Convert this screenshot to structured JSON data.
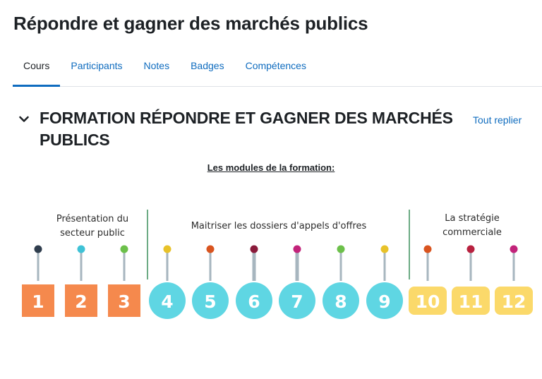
{
  "page": {
    "title": "Répondre et gagner des marchés publics"
  },
  "tabs": [
    {
      "label": "Cours",
      "active": true
    },
    {
      "label": "Participants"
    },
    {
      "label": "Notes"
    },
    {
      "label": "Badges"
    },
    {
      "label": "Compétences"
    }
  ],
  "section": {
    "title": "FORMATION RÉPONDRE ET GAGNER DES MARCHÉS PUBLICS",
    "collapse_all": "Tout replier",
    "toggle_icon": "chevron-down-icon"
  },
  "modules_heading": "Les modules de la formation:",
  "timeline": {
    "groups": [
      {
        "lines": [
          "Présentation du",
          "secteur public"
        ]
      },
      {
        "lines": [
          "Maitriser les dossiers d'appels d'offres"
        ]
      },
      {
        "lines": [
          "La stratégie",
          "commerciale"
        ]
      }
    ],
    "modules": [
      {
        "number": "1",
        "shape": "square",
        "color": "#f5894d",
        "dot": "#2f3d4d"
      },
      {
        "number": "2",
        "shape": "square",
        "color": "#f5894d",
        "dot": "#3fc2d6"
      },
      {
        "number": "3",
        "shape": "square",
        "color": "#f5894d",
        "dot": "#6cc04a"
      },
      {
        "number": "4",
        "shape": "circle",
        "color": "#5fd6e3",
        "dot": "#e8c229"
      },
      {
        "number": "5",
        "shape": "circle",
        "color": "#5fd6e3",
        "dot": "#d9541f"
      },
      {
        "number": "6",
        "shape": "circle",
        "color": "#5fd6e3",
        "dot": "#8a1b3b"
      },
      {
        "number": "7",
        "shape": "circle",
        "color": "#5fd6e3",
        "dot": "#c2237a"
      },
      {
        "number": "8",
        "shape": "circle",
        "color": "#5fd6e3",
        "dot": "#6cc04a"
      },
      {
        "number": "9",
        "shape": "circle",
        "color": "#5fd6e3",
        "dot": "#e8c229"
      },
      {
        "number": "10",
        "shape": "rounded",
        "color": "#fbd96a",
        "dot": "#d9541f"
      },
      {
        "number": "11",
        "shape": "rounded",
        "color": "#fbd96a",
        "dot": "#b8213f"
      },
      {
        "number": "12",
        "shape": "rounded",
        "color": "#fbd96a",
        "dot": "#c2237a"
      }
    ]
  }
}
